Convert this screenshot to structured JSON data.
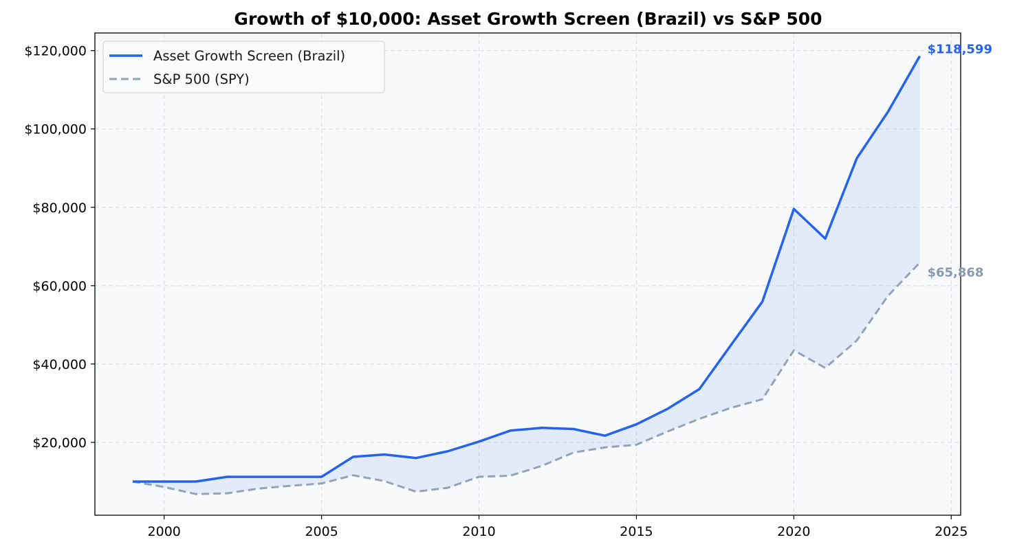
{
  "chart_data": {
    "type": "line",
    "title": "Growth of $10,000: Asset Growth Screen (Brazil) vs S&P 500",
    "xlabel": "",
    "ylabel": "",
    "xlim": [
      1997.8,
      2025.3
    ],
    "ylim": [
      1400,
      124500
    ],
    "x_ticks": [
      2000,
      2005,
      2010,
      2015,
      2020,
      2025
    ],
    "x_tick_labels": [
      "2000",
      "2005",
      "2010",
      "2015",
      "2020",
      "2025"
    ],
    "y_ticks": [
      20000,
      40000,
      60000,
      80000,
      100000,
      120000
    ],
    "y_tick_labels": [
      "$20,000",
      "$40,000",
      "$60,000",
      "$80,000",
      "$100,000",
      "$120,000"
    ],
    "grid": true,
    "legend_position": "top-left",
    "fill_between_series": true,
    "x": [
      1999,
      2000,
      2001,
      2002,
      2003,
      2004,
      2005,
      2006,
      2007,
      2008,
      2009,
      2010,
      2011,
      2012,
      2013,
      2014,
      2015,
      2016,
      2017,
      2018,
      2019,
      2020,
      2021,
      2022,
      2023,
      2024
    ],
    "series": [
      {
        "name": "Asset Growth Screen (Brazil)",
        "style": "solid",
        "color": "#2563eb",
        "values": [
          10000,
          10000,
          10000,
          11200,
          11200,
          11200,
          11200,
          16300,
          16900,
          16000,
          17700,
          20200,
          23000,
          23700,
          23400,
          21700,
          24600,
          28600,
          33600,
          44800,
          55900,
          79600,
          72000,
          92500,
          104500,
          118599
        ]
      },
      {
        "name": "S&P 500 (SPY)",
        "style": "dashed",
        "color": "#94a3b8",
        "values": [
          10000,
          8600,
          6800,
          7000,
          8200,
          8900,
          9500,
          11600,
          10100,
          7400,
          8400,
          11200,
          11500,
          14000,
          17400,
          18700,
          19400,
          22800,
          26000,
          28800,
          31000,
          43500,
          39000,
          46000,
          57500,
          65868
        ]
      }
    ],
    "end_labels": [
      "$118,599",
      "$65,868"
    ]
  }
}
